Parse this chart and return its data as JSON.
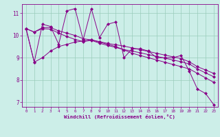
{
  "title": "",
  "xlabel": "Windchill (Refroidissement éolien,°C)",
  "ylabel": "",
  "bg_color": "#cceee8",
  "grid_color": "#99ccbb",
  "line_color": "#880088",
  "xlim": [
    -0.5,
    23.5
  ],
  "ylim": [
    6.8,
    11.4
  ],
  "yticks": [
    7,
    8,
    9,
    10,
    11
  ],
  "xticks": [
    0,
    1,
    2,
    3,
    4,
    5,
    6,
    7,
    8,
    9,
    10,
    11,
    12,
    13,
    14,
    15,
    16,
    17,
    18,
    19,
    20,
    21,
    22,
    23
  ],
  "series": [
    [
      10.3,
      8.8,
      10.5,
      10.4,
      9.6,
      11.1,
      11.2,
      9.8,
      11.2,
      9.9,
      10.5,
      10.6,
      9.0,
      9.4,
      9.4,
      9.3,
      9.0,
      9.0,
      9.0,
      9.1,
      8.4,
      7.6,
      7.4,
      6.9
    ],
    [
      10.3,
      10.15,
      10.35,
      10.35,
      10.2,
      10.1,
      10.0,
      9.85,
      9.8,
      9.72,
      9.64,
      9.58,
      9.52,
      9.44,
      9.36,
      9.28,
      9.2,
      9.12,
      9.04,
      8.96,
      8.82,
      8.6,
      8.45,
      8.3
    ],
    [
      10.3,
      10.15,
      10.3,
      10.28,
      10.1,
      9.95,
      9.82,
      9.72,
      9.78,
      9.65,
      9.55,
      9.46,
      9.36,
      9.3,
      9.22,
      9.14,
      9.06,
      8.98,
      8.9,
      8.82,
      8.72,
      8.5,
      8.32,
      8.15
    ],
    [
      10.3,
      8.8,
      9.0,
      9.3,
      9.5,
      9.6,
      9.7,
      9.75,
      9.8,
      9.7,
      9.6,
      9.5,
      9.35,
      9.2,
      9.1,
      9.0,
      8.9,
      8.8,
      8.7,
      8.6,
      8.5,
      8.3,
      8.1,
      7.9
    ]
  ],
  "marker_styles": [
    "D",
    "D",
    "D",
    "D"
  ],
  "marker_size": 2.0,
  "linewidth": 0.7
}
